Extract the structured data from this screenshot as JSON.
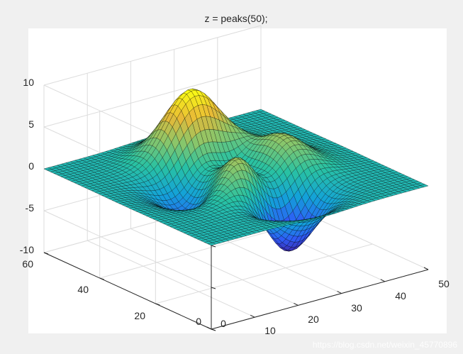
{
  "chart_data": {
    "type": "surface",
    "title": "z = peaks(50);",
    "x_ticks": [
      "0",
      "10",
      "20",
      "30",
      "40",
      "50"
    ],
    "y_ticks": [
      "0",
      "20",
      "40",
      "60"
    ],
    "z_ticks": [
      "10",
      "5",
      "0",
      "-5",
      "-10"
    ],
    "xlim": [
      0,
      50
    ],
    "ylim": [
      0,
      60
    ],
    "zlim": [
      -10,
      10
    ],
    "grid": true,
    "colormap": "parula",
    "colormap_stops": [
      "#3e26a8",
      "#2e5cf6",
      "#13a2d8",
      "#29c2a2",
      "#8ac66a",
      "#e8b937",
      "#f9fb15"
    ],
    "summit_peak_z": 8.0,
    "lowest_trough_z": -6.5
  },
  "watermark": "https://blog.csdn.net/weixin_45770896"
}
